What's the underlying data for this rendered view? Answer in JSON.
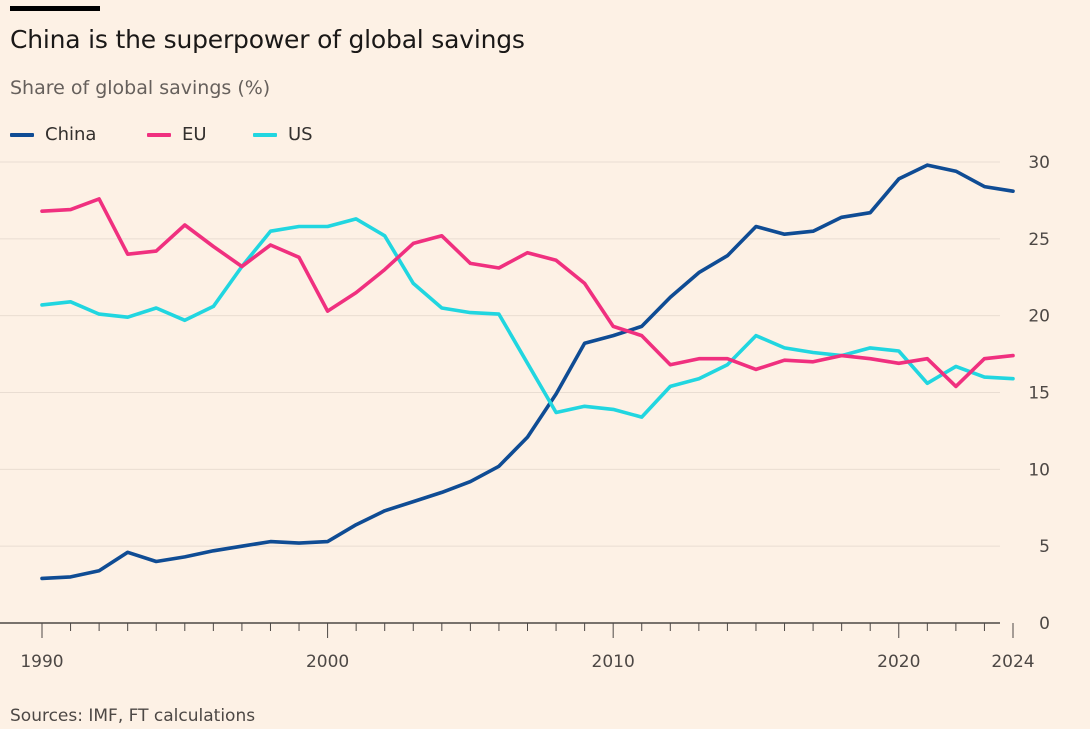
{
  "header": {
    "title": "China is the superpower of global savings",
    "subtitle": "Share of global savings (%)"
  },
  "legend": [
    {
      "label": "China",
      "color": "#0f4c94"
    },
    {
      "label": "EU",
      "color": "#f0307f"
    },
    {
      "label": "US",
      "color": "#21d6e0"
    }
  ],
  "footer": {
    "source": "Sources: IMF, FT calculations"
  },
  "chart_data": {
    "type": "line",
    "title": "China is the superpower of global savings",
    "ylabel": "Share of global savings (%)",
    "xlabel": "",
    "ylim": [
      0,
      30
    ],
    "xlim": [
      1990,
      2024
    ],
    "y_axis_position": "right",
    "y_ticks": [
      0,
      5,
      10,
      15,
      20,
      25,
      30
    ],
    "x_ticks": [
      1990,
      2000,
      2010,
      2020,
      2024
    ],
    "grid": true,
    "legend_position": "top-left",
    "x": [
      1990,
      1991,
      1992,
      1993,
      1994,
      1995,
      1996,
      1997,
      1998,
      1999,
      2000,
      2001,
      2002,
      2003,
      2004,
      2005,
      2006,
      2007,
      2008,
      2009,
      2010,
      2011,
      2012,
      2013,
      2014,
      2015,
      2016,
      2017,
      2018,
      2019,
      2020,
      2021,
      2022,
      2023,
      2024
    ],
    "series": [
      {
        "name": "China",
        "color": "#0f4c94",
        "values": [
          2.9,
          3.0,
          3.4,
          4.6,
          4.0,
          4.3,
          4.7,
          5.0,
          5.3,
          5.2,
          5.3,
          6.4,
          7.3,
          7.9,
          8.5,
          9.2,
          10.2,
          12.1,
          14.9,
          18.2,
          18.7,
          19.3,
          21.2,
          22.8,
          23.9,
          25.8,
          25.3,
          25.5,
          26.4,
          26.7,
          28.9,
          29.8,
          29.4,
          28.4,
          28.1
        ]
      },
      {
        "name": "EU",
        "color": "#f0307f",
        "values": [
          26.8,
          26.9,
          27.6,
          24.0,
          24.2,
          25.9,
          24.5,
          23.2,
          24.6,
          23.8,
          20.3,
          21.5,
          23.0,
          24.7,
          25.2,
          23.4,
          23.1,
          24.1,
          23.6,
          22.1,
          19.3,
          18.7,
          16.8,
          17.2,
          17.2,
          16.5,
          17.1,
          17.0,
          17.4,
          17.2,
          16.9,
          17.2,
          15.4,
          17.2,
          17.4
        ]
      },
      {
        "name": "US",
        "color": "#21d6e0",
        "values": [
          20.7,
          20.9,
          20.1,
          19.9,
          20.5,
          19.7,
          20.6,
          23.2,
          25.5,
          25.8,
          25.8,
          26.3,
          25.2,
          22.1,
          20.5,
          20.2,
          20.1,
          16.9,
          13.7,
          14.1,
          13.9,
          13.4,
          15.4,
          15.9,
          16.8,
          18.7,
          17.9,
          17.6,
          17.4,
          17.9,
          17.7,
          15.6,
          16.7,
          16.0,
          15.9
        ]
      }
    ]
  }
}
